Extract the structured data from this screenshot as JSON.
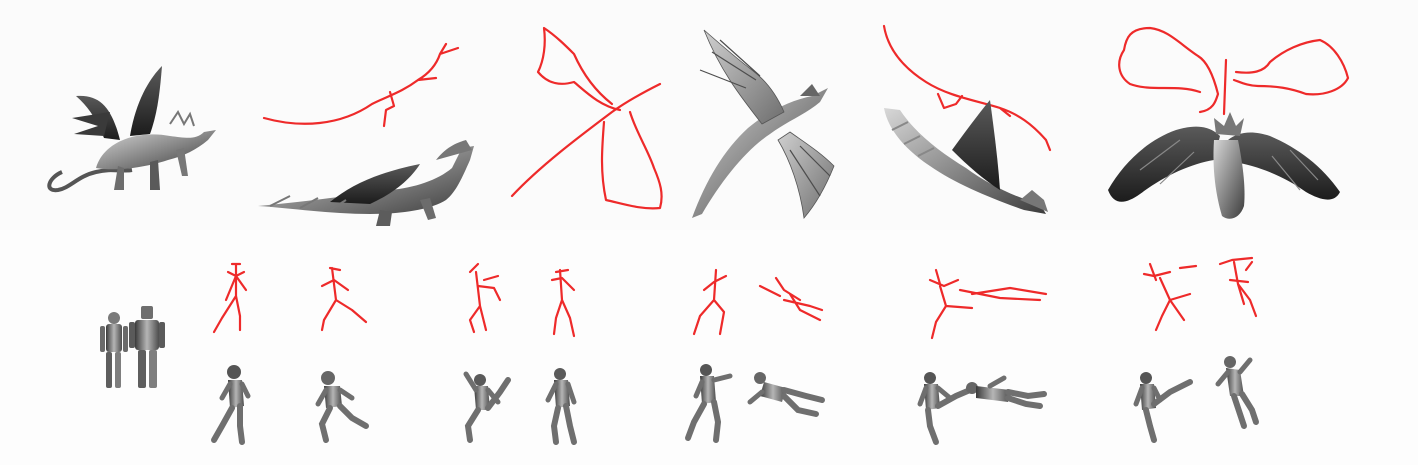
{
  "figure": {
    "background": "#ffffff",
    "sketch_color": "#ee2a2a",
    "model_color": "#7a7a7a"
  }
}
